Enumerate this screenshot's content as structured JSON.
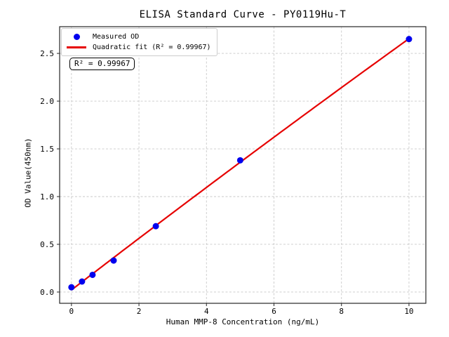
{
  "figure": {
    "title": "ELISA Standard Curve - PY0119Hu-T"
  },
  "axes": {
    "xlabel": "Human MMP-8 Concentration (ng/mL)",
    "ylabel": "OD Value(450nm)",
    "xtick_labels": [
      "0",
      "2",
      "4",
      "6",
      "8",
      "10"
    ],
    "ytick_labels": [
      "0.0",
      "0.5",
      "1.0",
      "1.5",
      "2.0",
      "2.5"
    ]
  },
  "legend": {
    "items": [
      {
        "label": "Measured OD",
        "marker": "dot"
      },
      {
        "label": "Quadratic fit (R² = 0.99967)",
        "marker": "line"
      }
    ]
  },
  "annotation": {
    "text": "R² = 0.99967"
  },
  "colors": {
    "marker": "#0000ee",
    "fit_line": "#e60000",
    "grid": "#c9c9c9",
    "spine": "#262626",
    "text": "#000000",
    "legend_border": "#cccccc"
  },
  "chart_data": {
    "type": "scatter",
    "title": "ELISA Standard Curve - PY0119Hu-T",
    "xlabel": "Human MMP-8 Concentration (ng/mL)",
    "ylabel": "OD Value(450nm)",
    "x": [
      0,
      0.3125,
      0.625,
      1.25,
      2.5,
      5,
      10
    ],
    "y": [
      0.05,
      0.11,
      0.18,
      0.33,
      0.69,
      1.38,
      2.65
    ],
    "series": [
      {
        "name": "Measured OD",
        "type": "scatter"
      },
      {
        "name": "Quadratic fit (R² = 0.99967)",
        "type": "line",
        "fit": "quadratic",
        "r_squared": 0.99967
      }
    ],
    "xticks": [
      0,
      2,
      4,
      6,
      8,
      10
    ],
    "yticks": [
      0,
      0.5,
      1,
      1.5,
      2,
      2.5
    ],
    "xlim": [
      -0.35,
      10.5
    ],
    "ylim": [
      -0.118,
      2.78
    ],
    "grid": true,
    "legend_position": "upper left"
  }
}
